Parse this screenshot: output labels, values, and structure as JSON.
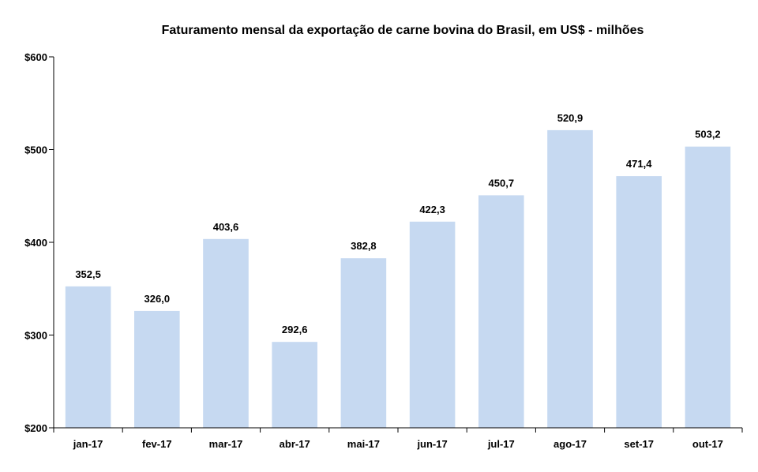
{
  "chart_data": {
    "type": "bar",
    "title": "Faturamento mensal da exportação de carne bovina do Brasil, em US$ - milhões",
    "xlabel": "",
    "ylabel": "",
    "categories": [
      "jan-17",
      "fev-17",
      "mar-17",
      "abr-17",
      "mai-17",
      "jun-17",
      "jul-17",
      "ago-17",
      "set-17",
      "out-17"
    ],
    "values": [
      352.5,
      326.0,
      403.6,
      292.6,
      382.8,
      422.3,
      450.7,
      520.9,
      471.4,
      503.2
    ],
    "data_labels": [
      "352,5",
      "326,0",
      "403,6",
      "292,6",
      "382,8",
      "422,3",
      "450,7",
      "520,9",
      "471,4",
      "503,2"
    ],
    "ylim": [
      200,
      600
    ],
    "yticks": [
      200,
      300,
      400,
      500,
      600
    ],
    "ytick_labels": [
      "$200",
      "$300",
      "$400",
      "$500",
      "$600"
    ],
    "grid": false,
    "legend": "none",
    "bar_color": "#c6d9f1",
    "axis_color": "#000000"
  }
}
